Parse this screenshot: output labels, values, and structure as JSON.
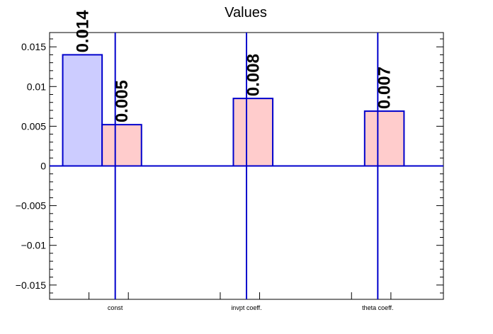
{
  "chart_data": {
    "type": "bar",
    "title": "Values",
    "xlabel": "",
    "ylabel": "",
    "categories": [
      "const",
      "invpt coeff.",
      "theta coeff."
    ],
    "ylim": [
      -0.0168,
      0.0168
    ],
    "yticks": [
      -0.015,
      -0.01,
      -0.005,
      0,
      0.005,
      0.01,
      0.015
    ],
    "ytick_labels": [
      "−0.015",
      "−0.01",
      "−0.005",
      "0",
      "0.005",
      "0.01",
      "0.015"
    ],
    "grid": false,
    "series": [
      {
        "values": [
          0.014,
          null,
          null
        ],
        "color": "#ccccff",
        "edge_color": "#0000cc",
        "labels": [
          "0.014",
          "",
          ""
        ]
      },
      {
        "values": [
          0.0052,
          0.0085,
          0.0069
        ],
        "color": "#ffcccc",
        "edge_color": "#0000cc",
        "labels": [
          "0.005",
          "0.008",
          "0.007"
        ]
      }
    ]
  }
}
